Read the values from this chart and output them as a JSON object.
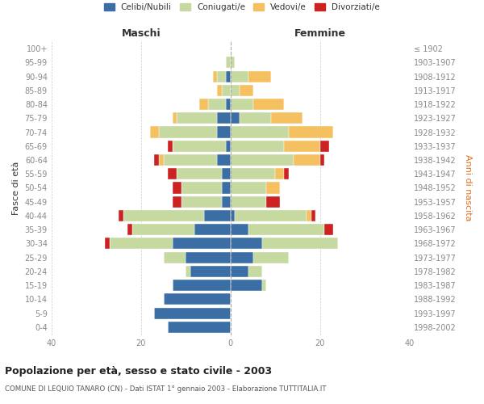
{
  "age_groups": [
    "0-4",
    "5-9",
    "10-14",
    "15-19",
    "20-24",
    "25-29",
    "30-34",
    "35-39",
    "40-44",
    "45-49",
    "50-54",
    "55-59",
    "60-64",
    "65-69",
    "70-74",
    "75-79",
    "80-84",
    "85-89",
    "90-94",
    "95-99",
    "100+"
  ],
  "birth_years": [
    "1998-2002",
    "1993-1997",
    "1988-1992",
    "1983-1987",
    "1978-1982",
    "1973-1977",
    "1968-1972",
    "1963-1967",
    "1958-1962",
    "1953-1957",
    "1948-1952",
    "1943-1947",
    "1938-1942",
    "1933-1937",
    "1928-1932",
    "1923-1927",
    "1918-1922",
    "1913-1917",
    "1908-1912",
    "1903-1907",
    "≤ 1902"
  ],
  "colors": {
    "celibi": "#3a6ea5",
    "coniugati": "#c5d9a0",
    "vedovi": "#f4c060",
    "divorziati": "#cc2222"
  },
  "males": {
    "celibi": [
      14,
      17,
      15,
      13,
      9,
      10,
      13,
      8,
      6,
      2,
      2,
      2,
      3,
      1,
      3,
      3,
      1,
      0,
      1,
      0,
      0
    ],
    "coniugati": [
      0,
      0,
      0,
      0,
      1,
      5,
      14,
      14,
      18,
      9,
      9,
      10,
      12,
      12,
      13,
      9,
      4,
      2,
      2,
      1,
      0
    ],
    "vedovi": [
      0,
      0,
      0,
      0,
      0,
      0,
      0,
      0,
      0,
      0,
      0,
      0,
      1,
      0,
      2,
      1,
      2,
      1,
      1,
      0,
      0
    ],
    "divorziati": [
      0,
      0,
      0,
      0,
      0,
      0,
      1,
      1,
      1,
      2,
      2,
      2,
      1,
      1,
      0,
      0,
      0,
      0,
      0,
      0,
      0
    ]
  },
  "females": {
    "celibi": [
      0,
      0,
      0,
      7,
      4,
      5,
      7,
      4,
      1,
      0,
      0,
      0,
      0,
      0,
      0,
      2,
      0,
      0,
      0,
      0,
      0
    ],
    "coniugati": [
      0,
      0,
      0,
      1,
      3,
      8,
      17,
      17,
      16,
      8,
      8,
      10,
      14,
      12,
      13,
      7,
      5,
      2,
      4,
      1,
      0
    ],
    "vedovi": [
      0,
      0,
      0,
      0,
      0,
      0,
      0,
      0,
      1,
      0,
      3,
      2,
      6,
      8,
      10,
      7,
      7,
      3,
      5,
      0,
      0
    ],
    "divorziati": [
      0,
      0,
      0,
      0,
      0,
      0,
      0,
      2,
      1,
      3,
      0,
      1,
      1,
      2,
      0,
      0,
      0,
      0,
      0,
      0,
      0
    ]
  },
  "xlim": 40,
  "title": "Popolazione per età, sesso e stato civile - 2003",
  "subtitle": "COMUNE DI LEQUIO TANARO (CN) - Dati ISTAT 1° gennaio 2003 - Elaborazione TUTTITALIA.IT",
  "xlabel_left": "Maschi",
  "xlabel_right": "Femmine",
  "ylabel_left": "Fasce di età",
  "ylabel_right": "Anni di nascita",
  "legend_labels": [
    "Celibi/Nubili",
    "Coniugati/e",
    "Vedovi/e",
    "Divorziati/e"
  ],
  "bg_color": "#ffffff",
  "grid_color": "#cccccc",
  "tick_color": "#888888"
}
